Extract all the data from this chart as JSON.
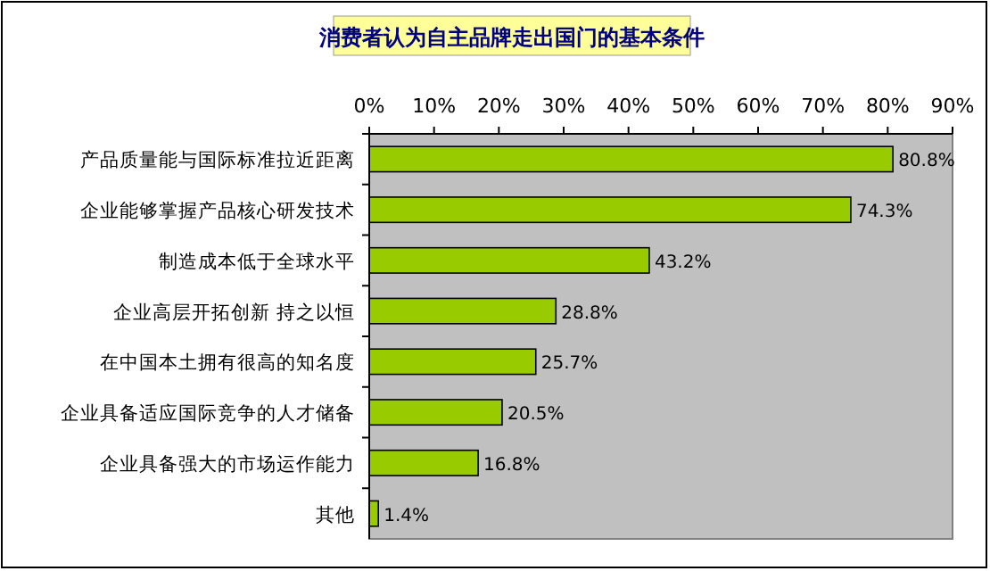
{
  "chart_data": {
    "type": "bar",
    "orientation": "horizontal",
    "title": "消费者认为自主品牌走出国门的基本条件",
    "categories": [
      "产品质量能与国际标准拉近距离",
      "企业能够掌握产品核心研发技术",
      "制造成本低于全球水平",
      "企业高层开拓创新 持之以恒",
      "在中国本土拥有很高的知名度",
      "企业具备适应国际竞争的人才储备",
      "企业具备强大的市场运作能力",
      "其他"
    ],
    "values": [
      80.8,
      74.3,
      43.2,
      28.8,
      25.7,
      20.5,
      16.8,
      1.4
    ],
    "value_labels": [
      "80.8%",
      "74.3%",
      "43.2%",
      "28.8%",
      "25.7%",
      "20.5%",
      "16.8%",
      "1.4%"
    ],
    "color": "#99cc00",
    "xlim": [
      0,
      90
    ],
    "xticks": [
      {
        "value": 0,
        "label": "0%"
      },
      {
        "value": 10,
        "label": "10%"
      },
      {
        "value": 20,
        "label": "20%"
      },
      {
        "value": 30,
        "label": "30%"
      },
      {
        "value": 40,
        "label": "40%"
      },
      {
        "value": 50,
        "label": "50%"
      },
      {
        "value": 60,
        "label": "60%"
      },
      {
        "value": 70,
        "label": "70%"
      },
      {
        "value": 80,
        "label": "80%"
      },
      {
        "value": 90,
        "label": "90%"
      }
    ],
    "grid": false
  }
}
